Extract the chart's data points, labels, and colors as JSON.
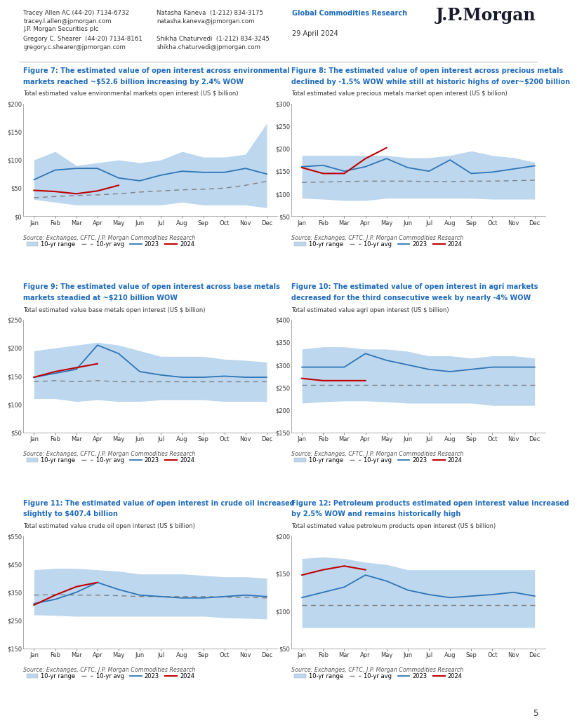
{
  "header": {
    "left_col1_lines": [
      "Tracey Allen AC (44-20) 7134-6732",
      "tracey.l.allen@jpmorgan.com",
      "J.P. Morgan Securities plc",
      "Gregory C. Shearer  (44-20) 7134-8161",
      "gregory.c.shearer@jpmorgan.com"
    ],
    "left_col2_lines": [
      "Natasha Kaneva  (1-212) 834-3175",
      "natasha.kaneva@jpmorgan.com",
      "",
      "Shikha Chaturvedi  (1-212) 834-3245",
      "shikha.chaturvedi@jpmorgan.com"
    ],
    "center_label": "Global Commodities Research",
    "date": "29 April 2024",
    "logo": "J.P.Morgan"
  },
  "source_text": "Source: Exchanges, CFTC, J.P. Morgan Commodities Research",
  "months": [
    "Jan",
    "Feb",
    "Mar",
    "Apr",
    "May",
    "Jun",
    "Jul",
    "Aug",
    "Sep",
    "Oct",
    "Nov",
    "Dec"
  ],
  "figures": [
    {
      "title_line1": "Figure 7: The estimated value of open interest across environmental",
      "title_line2": "markets reached ~$52.6 billion increasing by 2.4% WOW",
      "subtitle": "Total estimated value environmental markets open interest (US $ billion)",
      "ylim": [
        0,
        200
      ],
      "yticks": [
        0,
        50,
        100,
        150,
        200
      ],
      "ytick_labels": [
        "$0",
        "$50",
        "$100",
        "$150",
        "$200"
      ],
      "range_upper": [
        100,
        115,
        90,
        95,
        100,
        95,
        100,
        115,
        105,
        105,
        110,
        165
      ],
      "range_lower": [
        30,
        25,
        20,
        20,
        20,
        20,
        20,
        25,
        20,
        20,
        20,
        15
      ],
      "avg": [
        33,
        35,
        37,
        38,
        40,
        43,
        45,
        47,
        48,
        50,
        55,
        62
      ],
      "line2023": [
        65,
        82,
        85,
        85,
        68,
        63,
        73,
        80,
        78,
        78,
        85,
        75
      ],
      "line2024": [
        46,
        44,
        40,
        45,
        55,
        null,
        null,
        null,
        null,
        null,
        null,
        null
      ]
    },
    {
      "title_line1": "Figure 8: The estimated value of open interest across precious metals",
      "title_line2": "declined by -1.5% WOW while still at historic highs of over~$200 billion",
      "subtitle": "Total estimated value precious metals market open interest (US $ billion)",
      "ylim": [
        50,
        300
      ],
      "yticks": [
        50,
        100,
        150,
        200,
        250,
        300
      ],
      "ytick_labels": [
        "$50",
        "$100",
        "$150",
        "$200",
        "$250",
        "$300"
      ],
      "range_upper": [
        185,
        185,
        185,
        185,
        185,
        180,
        180,
        185,
        195,
        185,
        180,
        170
      ],
      "range_lower": [
        90,
        88,
        85,
        85,
        90,
        90,
        90,
        90,
        90,
        88,
        88,
        88
      ],
      "avg": [
        125,
        126,
        127,
        128,
        128,
        128,
        127,
        127,
        128,
        128,
        129,
        130
      ],
      "line2023": [
        160,
        163,
        150,
        160,
        178,
        158,
        150,
        175,
        145,
        148,
        155,
        162
      ],
      "line2024": [
        158,
        145,
        145,
        178,
        202,
        null,
        null,
        null,
        null,
        null,
        null,
        null
      ]
    },
    {
      "title_line1": "Figure 9: The estimated value of open interest across base metals",
      "title_line2": "markets steadied at ~$210 billion WOW",
      "subtitle": "Total estimated value base metals open interest (US $ billion)",
      "ylim": [
        50,
        250
      ],
      "yticks": [
        50,
        100,
        150,
        200,
        250
      ],
      "ytick_labels": [
        "$50",
        "$100",
        "$150",
        "$200",
        "$250"
      ],
      "range_upper": [
        195,
        200,
        205,
        210,
        205,
        195,
        185,
        185,
        185,
        180,
        178,
        175
      ],
      "range_lower": [
        110,
        110,
        105,
        108,
        105,
        105,
        108,
        108,
        108,
        105,
        105,
        105
      ],
      "avg": [
        140,
        142,
        140,
        142,
        140,
        140,
        140,
        140,
        140,
        140,
        140,
        140
      ],
      "line2023": [
        148,
        155,
        162,
        205,
        190,
        158,
        152,
        148,
        148,
        150,
        148,
        148
      ],
      "line2024": [
        148,
        158,
        165,
        172,
        null,
        null,
        null,
        null,
        null,
        null,
        null,
        null
      ]
    },
    {
      "title_line1": "Figure 10: The estimated value of open interest in agri markets",
      "title_line2": "decreased for the third consecutive week by nearly -4% WOW",
      "subtitle": "Total estimated value agri open interest (US $ billion)",
      "ylim": [
        150,
        400
      ],
      "yticks": [
        150,
        200,
        250,
        300,
        350,
        400
      ],
      "ytick_labels": [
        "$150",
        "$200",
        "$250",
        "$300",
        "$350",
        "$400"
      ],
      "range_upper": [
        335,
        340,
        340,
        335,
        335,
        330,
        320,
        320,
        315,
        320,
        320,
        315
      ],
      "range_lower": [
        215,
        218,
        220,
        220,
        218,
        215,
        215,
        215,
        215,
        210,
        210,
        210
      ],
      "avg": [
        255,
        255,
        255,
        255,
        255,
        255,
        255,
        255,
        255,
        255,
        255,
        255
      ],
      "line2023": [
        295,
        295,
        295,
        325,
        310,
        300,
        290,
        285,
        290,
        295,
        295,
        295
      ],
      "line2024": [
        270,
        265,
        265,
        265,
        null,
        null,
        null,
        null,
        null,
        null,
        null,
        null
      ]
    },
    {
      "title_line1": "Figure 11: The estimated value of open interest in crude oil increased",
      "title_line2": "slightly to $407.4 billion",
      "subtitle": "Total estimated value crude oil open interest (US $ billion)",
      "ylim": [
        150,
        550
      ],
      "yticks": [
        150,
        250,
        350,
        450,
        550
      ],
      "ytick_labels": [
        "$150",
        "$250",
        "$350",
        "$450",
        "$550"
      ],
      "range_upper": [
        430,
        435,
        435,
        430,
        425,
        415,
        415,
        415,
        410,
        405,
        405,
        400
      ],
      "range_lower": [
        270,
        268,
        265,
        265,
        265,
        265,
        265,
        265,
        265,
        260,
        258,
        255
      ],
      "avg": [
        340,
        342,
        340,
        340,
        338,
        335,
        335,
        335,
        335,
        333,
        332,
        330
      ],
      "line2023": [
        310,
        325,
        350,
        385,
        360,
        340,
        335,
        330,
        330,
        335,
        340,
        335
      ],
      "line2024": [
        305,
        340,
        370,
        385,
        null,
        null,
        null,
        null,
        null,
        null,
        null,
        null
      ]
    },
    {
      "title_line1": "Figure 12: Petroleum products estimated open interest value increased",
      "title_line2": "by 2.5% WOW and remains historically high",
      "subtitle": "Total estimated value petroleum products open interest (US $ billion)",
      "ylim": [
        50,
        200
      ],
      "yticks": [
        50,
        100,
        150,
        200
      ],
      "ytick_labels": [
        "$50",
        "$100",
        "$150",
        "$200"
      ],
      "range_upper": [
        170,
        172,
        170,
        165,
        162,
        155,
        155,
        155,
        155,
        155,
        155,
        155
      ],
      "range_lower": [
        78,
        78,
        78,
        78,
        78,
        78,
        78,
        78,
        78,
        78,
        78,
        78
      ],
      "avg": [
        108,
        108,
        108,
        108,
        108,
        108,
        108,
        108,
        108,
        108,
        108,
        108
      ],
      "line2023": [
        118,
        125,
        132,
        148,
        140,
        128,
        122,
        118,
        120,
        122,
        125,
        120
      ],
      "line2024": [
        148,
        155,
        160,
        155,
        null,
        null,
        null,
        null,
        null,
        null,
        null,
        null
      ]
    }
  ],
  "colors": {
    "title_blue": "#1F6BBA",
    "header_blue": "#1F6BBA",
    "range_fill": "#BDD7EE",
    "avg_dash": "#808080",
    "line2023": "#2E75B6",
    "line2024": "#C00000",
    "axis_color": "#595959"
  },
  "legend_labels": [
    "10-yr range",
    "10-yr avg",
    "2023",
    "2024"
  ],
  "page_number": "5"
}
